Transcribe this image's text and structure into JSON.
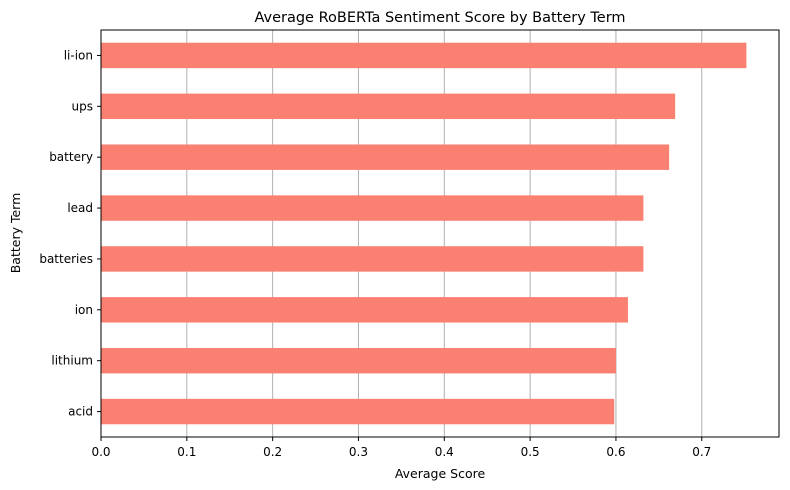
{
  "chart_data": {
    "type": "bar",
    "orientation": "horizontal",
    "title": "Average RoBERTa Sentiment Score by Battery Term",
    "xlabel": "Average Score",
    "ylabel": "Battery Term",
    "categories": [
      "li-ion",
      "ups",
      "battery",
      "lead",
      "batteries",
      "ion",
      "lithium",
      "acid"
    ],
    "values": [
      0.752,
      0.669,
      0.662,
      0.632,
      0.632,
      0.614,
      0.6,
      0.598
    ],
    "xlim": [
      0,
      0.79
    ],
    "xticks": [
      "0.0",
      "0.1",
      "0.2",
      "0.3",
      "0.4",
      "0.5",
      "0.6",
      "0.7"
    ],
    "grid": "x",
    "bar_color": "#fa8072",
    "grid_color": "#b0b0b0"
  }
}
